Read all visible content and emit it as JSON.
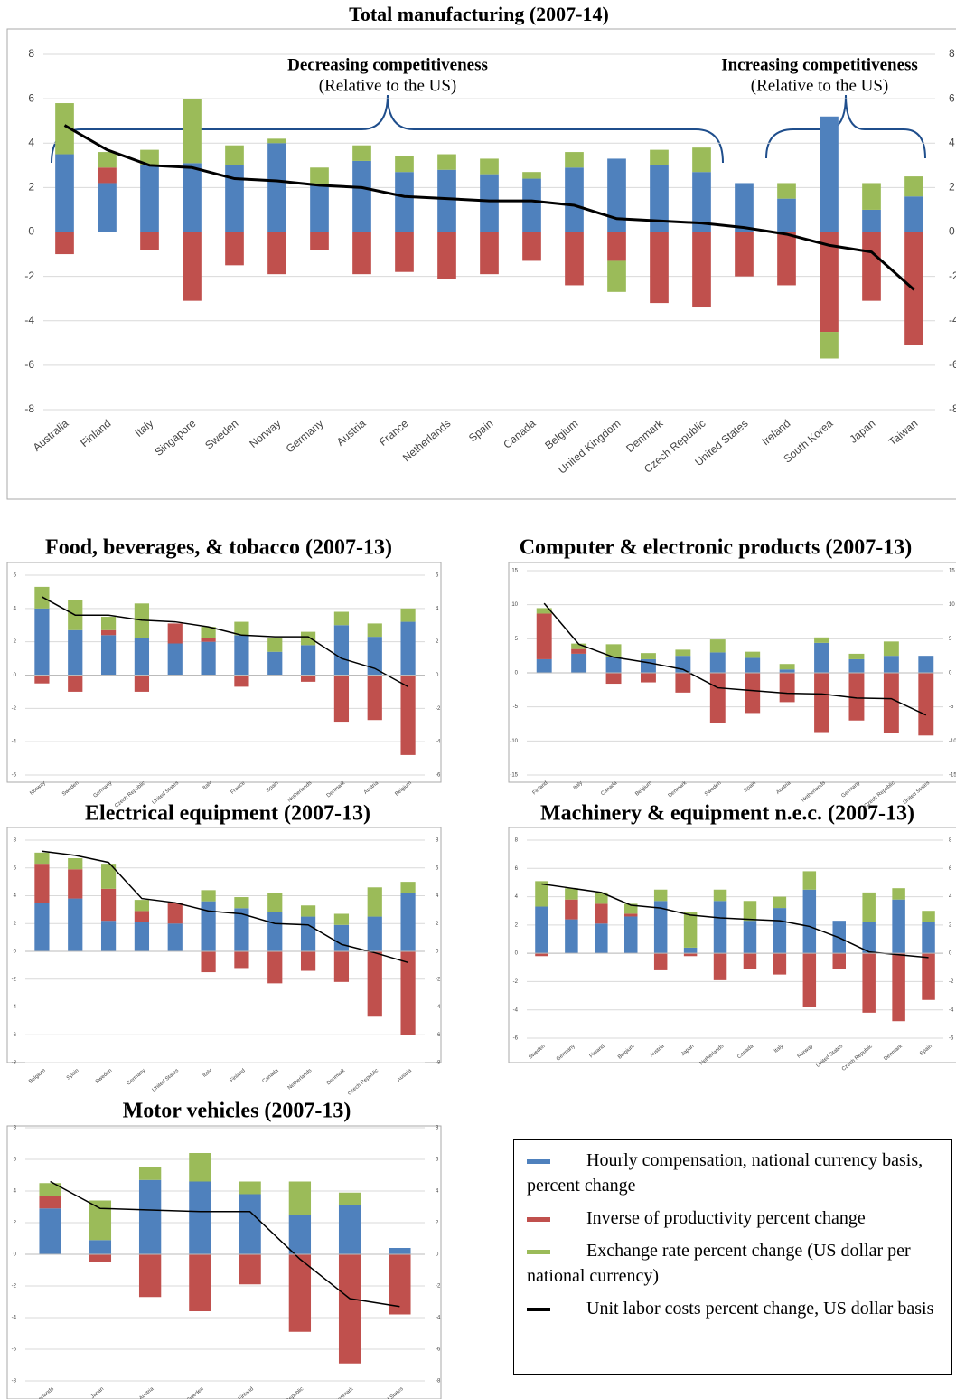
{
  "chart_data": [
    {
      "type": "bar",
      "title": "Total manufacturing (2007-14)",
      "categories": [
        "Australia",
        "Finland",
        "Italy",
        "Singapore",
        "Sweden",
        "Norway",
        "Germany",
        "Austria",
        "France",
        "Netherlands",
        "Spain",
        "Canada",
        "Belgium",
        "United Kingdom",
        "Denmark",
        "Czech Republic",
        "United States",
        "Ireland",
        "South Korea",
        "Japan",
        "Taiwan"
      ],
      "series": [
        {
          "name": "Hourly compensation, national currency basis, percent change",
          "type": "bar",
          "color": "#4f81bd",
          "values": [
            3.5,
            2.2,
            3.0,
            3.1,
            3.0,
            4.0,
            2.1,
            3.2,
            2.7,
            2.8,
            2.6,
            2.4,
            2.9,
            3.3,
            3.0,
            2.7,
            2.2,
            1.5,
            5.2,
            1.0,
            1.6
          ]
        },
        {
          "name": "Inverse of productivity percent change",
          "type": "bar",
          "color": "#c0504d",
          "values": [
            -1.0,
            0.7,
            -0.8,
            -3.1,
            -1.5,
            -1.9,
            -0.8,
            -1.9,
            -1.8,
            -2.1,
            -1.9,
            -1.3,
            -2.4,
            -1.3,
            -3.2,
            -3.4,
            -2.0,
            -2.4,
            -4.5,
            -3.1,
            -5.1
          ]
        },
        {
          "name": "Exchange rate percent change (US dollar per national currency)",
          "type": "bar",
          "color": "#9bbb59",
          "values": [
            2.3,
            0.7,
            0.7,
            2.9,
            0.9,
            0.2,
            0.8,
            0.7,
            0.7,
            0.7,
            0.7,
            0.3,
            0.7,
            -1.4,
            0.7,
            1.1,
            null,
            0.7,
            -1.2,
            1.2,
            0.9
          ]
        },
        {
          "name": "Unit labor costs percent change, US dollar basis",
          "type": "line",
          "color": "#000000",
          "values": [
            4.8,
            3.7,
            3.0,
            2.9,
            2.4,
            2.3,
            2.1,
            2.0,
            1.6,
            1.5,
            1.4,
            1.4,
            1.2,
            0.6,
            0.5,
            0.4,
            0.2,
            -0.1,
            -0.6,
            -0.9,
            -2.6
          ]
        }
      ],
      "annotations": [
        {
          "text": "Decreasing competitiveness",
          "subtext": "(Relative to the US)"
        },
        {
          "text": "Increasing competitiveness",
          "subtext": "(Relative to the US)"
        }
      ],
      "ylim": [
        -8,
        8
      ],
      "yticks": [
        -8,
        -6,
        -4,
        -2,
        0,
        2,
        4,
        6,
        8
      ],
      "grid": true
    },
    {
      "type": "bar",
      "title": "Food, beverages, & tobacco (2007-13)",
      "categories": [
        "Norway",
        "Sweden",
        "Germany",
        "Czech Republic",
        "United States",
        "Italy",
        "France",
        "Spain",
        "Netherlands",
        "Denmark",
        "Austria",
        "Belgium"
      ],
      "series": [
        {
          "type": "bar",
          "color": "#4f81bd",
          "values": [
            4.0,
            2.7,
            2.4,
            2.2,
            1.9,
            2.0,
            2.4,
            1.4,
            1.8,
            3.0,
            2.3,
            3.2
          ]
        },
        {
          "type": "bar",
          "color": "#c0504d",
          "values": [
            -0.5,
            -1.0,
            0.3,
            -1.0,
            1.2,
            0.2,
            -0.7,
            null,
            -0.4,
            -2.8,
            -2.7,
            -4.8
          ]
        },
        {
          "type": "bar",
          "color": "#9bbb59",
          "values": [
            1.3,
            1.8,
            0.8,
            2.1,
            null,
            0.7,
            0.8,
            0.8,
            0.8,
            0.8,
            0.8,
            0.8
          ]
        },
        {
          "type": "line",
          "color": "#000000",
          "values": [
            4.7,
            3.6,
            3.6,
            3.3,
            3.2,
            2.9,
            2.4,
            2.3,
            2.3,
            1.0,
            0.4,
            -0.7
          ]
        }
      ],
      "ylim": [
        -6,
        6
      ],
      "yticks": [
        -6,
        -4,
        -2,
        0,
        2,
        4,
        6
      ],
      "grid": true
    },
    {
      "type": "bar",
      "title": "Computer & electronic products (2007-13)",
      "categories": [
        "Finland",
        "Italy",
        "Canada",
        "Belgium",
        "Denmark",
        "Sweden",
        "Spain",
        "Austria",
        "Netherlands",
        "Germany",
        "Czech Republic",
        "United States"
      ],
      "series": [
        {
          "type": "bar",
          "color": "#4f81bd",
          "values": [
            2.0,
            2.8,
            2.3,
            2.0,
            2.5,
            3.0,
            2.2,
            0.5,
            4.4,
            2.0,
            2.5,
            2.5
          ]
        },
        {
          "type": "bar",
          "color": "#c0504d",
          "values": [
            6.7,
            0.7,
            -1.6,
            -1.4,
            -2.9,
            -7.3,
            -5.9,
            -4.3,
            -8.7,
            -7.0,
            -8.8,
            -9.2
          ]
        },
        {
          "type": "bar",
          "color": "#9bbb59",
          "values": [
            0.8,
            0.8,
            1.9,
            0.9,
            0.9,
            1.9,
            0.9,
            0.8,
            0.8,
            0.8,
            2.1,
            null
          ]
        },
        {
          "type": "line",
          "color": "#000000",
          "values": [
            10.2,
            4.2,
            2.3,
            1.5,
            0.5,
            -2.2,
            -2.6,
            -3.0,
            -3.1,
            -3.7,
            -3.8,
            -6.2
          ]
        }
      ],
      "ylim": [
        -15,
        15
      ],
      "yticks": [
        -15,
        -10,
        -5,
        0,
        5,
        10,
        15
      ],
      "grid": true
    },
    {
      "type": "bar",
      "title": "Electrical equipment (2007-13)",
      "categories": [
        "Belgium",
        "Spain",
        "Sweden",
        "Germany",
        "United States",
        "Italy",
        "Finland",
        "Canada",
        "Netherlands",
        "Denmark",
        "Czech Republic",
        "Austria"
      ],
      "series": [
        {
          "type": "bar",
          "color": "#4f81bd",
          "values": [
            3.5,
            3.8,
            2.2,
            2.1,
            2.0,
            3.6,
            3.1,
            2.8,
            2.5,
            1.9,
            2.5,
            4.2
          ]
        },
        {
          "type": "bar",
          "color": "#c0504d",
          "values": [
            2.8,
            2.1,
            2.3,
            0.8,
            1.5,
            -1.5,
            -1.2,
            -2.3,
            -1.4,
            -2.2,
            -4.7,
            -6.0
          ]
        },
        {
          "type": "bar",
          "color": "#9bbb59",
          "values": [
            0.8,
            0.8,
            1.8,
            0.8,
            null,
            0.8,
            0.8,
            1.4,
            0.8,
            0.8,
            2.1,
            0.8
          ]
        },
        {
          "type": "line",
          "color": "#000000",
          "values": [
            7.2,
            6.9,
            6.4,
            3.8,
            3.5,
            2.9,
            2.7,
            2.0,
            1.9,
            0.5,
            -0.1,
            -0.8
          ]
        }
      ],
      "ylim": [
        -8,
        8
      ],
      "yticks": [
        -8,
        -6,
        -4,
        -2,
        0,
        2,
        4,
        6,
        8
      ],
      "grid": true
    },
    {
      "type": "bar",
      "title": "Machinery & equipment n.e.c. (2007-13)",
      "categories": [
        "Sweden",
        "Germany",
        "Finland",
        "Belgium",
        "Austria",
        "Japan",
        "Netherlands",
        "Canada",
        "Italy",
        "Norway",
        "United States",
        "Czech Republic",
        "Denmark",
        "Spain"
      ],
      "series": [
        {
          "type": "bar",
          "color": "#4f81bd",
          "values": [
            3.3,
            2.4,
            2.1,
            2.6,
            3.7,
            0.4,
            3.7,
            2.3,
            3.2,
            4.5,
            2.3,
            2.2,
            3.8,
            2.2
          ]
        },
        {
          "type": "bar",
          "color": "#c0504d",
          "values": [
            -0.2,
            1.4,
            1.4,
            0.2,
            -1.2,
            -0.2,
            -1.9,
            -1.1,
            -1.5,
            -3.8,
            -1.1,
            -4.2,
            -4.8,
            -3.3
          ]
        },
        {
          "type": "bar",
          "color": "#9bbb59",
          "values": [
            1.8,
            0.8,
            0.8,
            0.7,
            0.8,
            2.5,
            0.8,
            1.4,
            0.8,
            1.3,
            null,
            2.1,
            0.8,
            0.8
          ]
        },
        {
          "type": "line",
          "color": "#000000",
          "values": [
            4.9,
            4.6,
            4.3,
            3.4,
            3.2,
            2.7,
            2.5,
            2.4,
            2.3,
            1.9,
            1.1,
            0.1,
            -0.1,
            -0.3
          ]
        }
      ],
      "ylim": [
        -6,
        8
      ],
      "yticks": [
        -6,
        -4,
        -2,
        0,
        2,
        4,
        6,
        8
      ],
      "grid": true
    },
    {
      "type": "bar",
      "title": "Motor vehicles (2007-13)",
      "categories": [
        "Netherlands",
        "Japan",
        "Austria",
        "Sweden",
        "Finland",
        "Czech Republic",
        "Denmark",
        "United States"
      ],
      "series": [
        {
          "type": "bar",
          "color": "#4f81bd",
          "values": [
            2.9,
            0.9,
            4.7,
            4.6,
            3.8,
            2.5,
            3.1,
            0.4
          ]
        },
        {
          "type": "bar",
          "color": "#c0504d",
          "values": [
            0.8,
            -0.5,
            -2.7,
            -3.6,
            -1.9,
            -4.9,
            -6.9,
            -3.8
          ]
        },
        {
          "type": "bar",
          "color": "#9bbb59",
          "values": [
            0.8,
            2.5,
            0.8,
            1.8,
            0.8,
            2.1,
            0.8,
            null
          ]
        },
        {
          "type": "line",
          "color": "#000000",
          "values": [
            4.6,
            2.9,
            2.8,
            2.7,
            2.7,
            -0.3,
            -2.8,
            -3.3
          ]
        }
      ],
      "ylim": [
        -8,
        8
      ],
      "yticks": [
        -8,
        -6,
        -4,
        -2,
        0,
        2,
        4,
        6,
        8
      ],
      "grid": true
    }
  ]
}
